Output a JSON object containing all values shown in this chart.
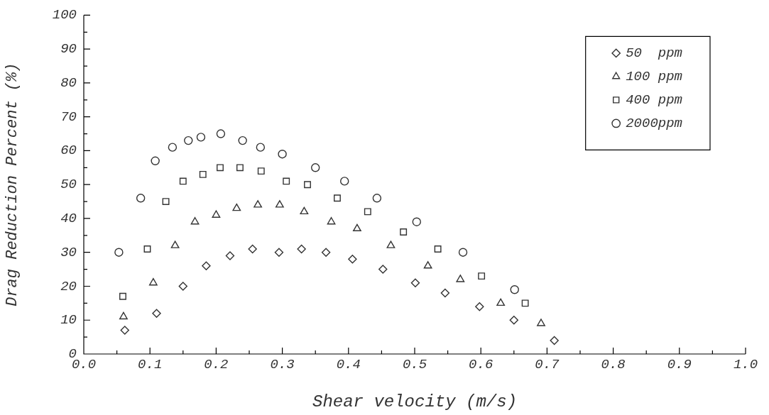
{
  "chart_data": {
    "type": "scatter",
    "xlabel": "Shear velocity (m/s)",
    "ylabel": "Drag Reduction Percent (%)",
    "xlim": [
      0,
      1
    ],
    "xticks": [
      {
        "value": 0,
        "label": "0.0"
      },
      0.1,
      0.2,
      0.3,
      0.4,
      0.5,
      0.6,
      0.7,
      0.8,
      0.9,
      {
        "value": 1,
        "label": "1.0"
      }
    ],
    "ylim": [
      0,
      100
    ],
    "yticks": [
      0,
      10,
      20,
      30,
      40,
      50,
      60,
      70,
      80,
      90,
      100
    ],
    "grid": false,
    "legend": "top right",
    "series": [
      {
        "name": "50  ppm",
        "color": "#333333",
        "marker": "diamond",
        "x": [
          0.062,
          0.11,
          0.15,
          0.185,
          0.221,
          0.255,
          0.295,
          0.329,
          0.366,
          0.406,
          0.452,
          0.501,
          0.546,
          0.598,
          0.65,
          0.711
        ],
        "values": [
          7,
          12,
          20,
          26,
          29,
          31,
          30,
          31,
          30,
          28,
          25,
          21,
          18,
          14,
          10,
          4
        ]
      },
      {
        "name": "100 ppm",
        "color": "#333333",
        "marker": "triangle",
        "x": [
          0.06,
          0.105,
          0.138,
          0.168,
          0.2,
          0.231,
          0.263,
          0.296,
          0.333,
          0.374,
          0.413,
          0.464,
          0.52,
          0.569,
          0.63,
          0.691
        ],
        "values": [
          11,
          21,
          32,
          39,
          41,
          43,
          44,
          44,
          42,
          39,
          37,
          32,
          26,
          22,
          15,
          9
        ]
      },
      {
        "name": "400 ppm",
        "color": "#333333",
        "marker": "square",
        "x": [
          0.059,
          0.096,
          0.124,
          0.15,
          0.18,
          0.206,
          0.236,
          0.268,
          0.306,
          0.338,
          0.383,
          0.429,
          0.483,
          0.535,
          0.601,
          0.667
        ],
        "values": [
          17,
          31,
          45,
          51,
          53,
          55,
          55,
          54,
          51,
          50,
          46,
          42,
          36,
          31,
          23,
          15
        ]
      },
      {
        "name": "2000ppm",
        "color": "#333333",
        "marker": "circle",
        "x": [
          0.053,
          0.086,
          0.108,
          0.134,
          0.158,
          0.177,
          0.207,
          0.24,
          0.267,
          0.3,
          0.35,
          0.394,
          0.443,
          0.503,
          0.573,
          0.651
        ],
        "values": [
          30,
          46,
          57,
          61,
          63,
          64,
          65,
          63,
          61,
          59,
          55,
          51,
          46,
          39,
          30,
          19
        ]
      }
    ]
  }
}
